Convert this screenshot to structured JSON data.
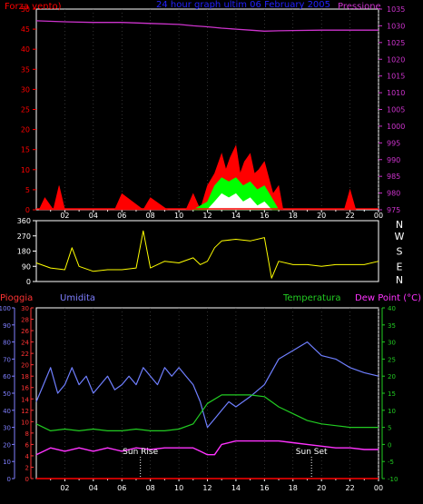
{
  "colors": {
    "background": "#000000",
    "frame": "#ffffff",
    "wind_max": "#ff0000",
    "wind_avg": "#00ff00",
    "wind_min": "#ffffff",
    "pressure": "#cc33cc",
    "direction": "#ffff00",
    "humidity": "#6f7fff",
    "temperature": "#22cc22",
    "dew_point": "#ff33ff",
    "rain": "#ff0000",
    "title": "#2222ff"
  },
  "top": {
    "left_label": "Forza vento)",
    "title": "24 hour graph ultim 06 February 2005",
    "right_label": "Pressione"
  },
  "direction_panel": {
    "compass": [
      "N",
      "W",
      "S",
      "E",
      "N"
    ]
  },
  "bottom": {
    "label_rain": "Pioggia",
    "label_humidity": "Umidita",
    "label_temperature": "Temperatura",
    "label_dewpoint": "Dew Point (°C)",
    "sunrise_label": "Sun Rise",
    "sunset_label": "Sun Set"
  },
  "chart_data": [
    {
      "type": "line",
      "name": "wind-and-pressure",
      "x_ticks": [
        "02",
        "04",
        "06",
        "08",
        "10",
        "12",
        "14",
        "16",
        "18",
        "20",
        "22",
        "00"
      ],
      "left_axis": {
        "label": "Forza vento)",
        "range": [
          0,
          50
        ],
        "ticks": [
          0,
          5,
          10,
          15,
          20,
          25,
          30,
          35,
          40,
          45,
          50
        ]
      },
      "right_axis": {
        "label": "Pressione",
        "range": [
          975,
          1035
        ],
        "ticks": [
          975,
          980,
          985,
          990,
          995,
          1000,
          1005,
          1010,
          1015,
          1020,
          1025,
          1030,
          1035
        ]
      },
      "pressure": {
        "x": [
          0,
          2,
          4,
          6,
          8,
          10,
          11,
          12,
          13,
          14,
          15,
          16,
          17,
          18,
          20,
          22,
          24
        ],
        "y": [
          1031.5,
          1031.2,
          1031,
          1031,
          1030.7,
          1030.4,
          1030,
          1029.7,
          1029.3,
          1029,
          1028.7,
          1028.4,
          1028.5,
          1028.6,
          1028.7,
          1028.7,
          1028.7
        ]
      },
      "wind_max": {
        "x": [
          0.2,
          0.6,
          1.2,
          1.6,
          2.0,
          3.0,
          5.5,
          6.0,
          7.5,
          8.0,
          9.2,
          10.5,
          11.0,
          11.5,
          12.0,
          12.5,
          12.8,
          13.0,
          13.3,
          13.6,
          14.0,
          14.3,
          14.6,
          15.0,
          15.3,
          15.6,
          16.0,
          16.3,
          16.6,
          17.0,
          17.3,
          21.6,
          22.0,
          22.4
        ],
        "y": [
          0,
          3,
          0,
          6,
          0,
          0,
          0,
          4,
          0,
          3,
          0,
          0,
          4,
          0,
          6,
          9,
          12,
          14,
          10,
          13,
          16,
          9,
          12,
          14,
          9,
          10,
          12,
          8,
          4,
          6,
          0,
          0,
          5,
          0
        ]
      },
      "wind_avg": {
        "x": [
          11.0,
          12.0,
          12.5,
          13.0,
          13.5,
          14.0,
          14.5,
          15.0,
          15.5,
          16.0,
          16.5,
          17.0
        ],
        "y": [
          0,
          2,
          6,
          8,
          7,
          8,
          6,
          7,
          5,
          6,
          3,
          0
        ]
      },
      "wind_min": {
        "x": [
          12.0,
          12.5,
          13.0,
          13.5,
          14.0,
          14.5,
          15.0,
          15.5,
          16.0,
          16.5
        ],
        "y": [
          0,
          2,
          4,
          3,
          4,
          2,
          3,
          1,
          2,
          0
        ]
      }
    },
    {
      "type": "line",
      "name": "wind-direction",
      "left_axis": {
        "range": [
          0,
          360
        ],
        "ticks": [
          0,
          90,
          180,
          270,
          360
        ]
      },
      "right_axis": {
        "labels": [
          "N",
          "W",
          "S",
          "E",
          "N"
        ]
      },
      "x": [
        0,
        1,
        2,
        2.5,
        3,
        4,
        5,
        6,
        7,
        7.5,
        8,
        9,
        10,
        11,
        11.5,
        12,
        12.5,
        13,
        14,
        15,
        16,
        16.5,
        17,
        18,
        19,
        20,
        21,
        22,
        23,
        24
      ],
      "y": [
        110,
        80,
        70,
        200,
        90,
        60,
        70,
        70,
        80,
        300,
        80,
        120,
        110,
        140,
        100,
        120,
        200,
        240,
        250,
        240,
        260,
        20,
        120,
        100,
        100,
        90,
        100,
        100,
        100,
        120
      ]
    },
    {
      "type": "line",
      "name": "humidity-temperature-dewpoint-rain",
      "x_ticks": [
        "02",
        "04",
        "06",
        "08",
        "10",
        "12",
        "14",
        "16",
        "18",
        "20",
        "22",
        "00"
      ],
      "humidity_axis": {
        "label": "Umidita",
        "range": [
          0,
          100
        ],
        "ticks": [
          0,
          10,
          20,
          30,
          40,
          50,
          60,
          70,
          80,
          90,
          100
        ]
      },
      "rain_axis": {
        "label": "Pioggia",
        "range": [
          0,
          30
        ],
        "ticks": [
          0,
          2,
          4,
          6,
          8,
          10,
          12,
          14,
          16,
          18,
          20,
          22,
          24,
          26,
          28,
          30
        ]
      },
      "temperature_axis": {
        "label": "Temperatura",
        "range": [
          -10,
          40
        ],
        "ticks": [
          -10,
          -5,
          0,
          5,
          10,
          15,
          20,
          25,
          30,
          35,
          40
        ]
      },
      "humidity": {
        "x": [
          0,
          0.5,
          1,
          1.5,
          2,
          2.5,
          3,
          3.5,
          4,
          4.5,
          5,
          5.5,
          6,
          6.5,
          7,
          7.5,
          8,
          8.5,
          9,
          9.5,
          10,
          10.5,
          11,
          11.5,
          12,
          12.5,
          13,
          13.5,
          14,
          15,
          16,
          17,
          18,
          19,
          20,
          21,
          22,
          23,
          24
        ],
        "y": [
          45,
          55,
          65,
          50,
          55,
          65,
          55,
          60,
          50,
          55,
          60,
          52,
          55,
          60,
          55,
          65,
          60,
          55,
          65,
          60,
          65,
          60,
          55,
          45,
          30,
          35,
          40,
          45,
          42,
          48,
          55,
          70,
          75,
          80,
          72,
          70,
          65,
          62,
          60
        ]
      },
      "temperature": {
        "x": [
          0,
          1,
          2,
          3,
          4,
          5,
          6,
          7,
          8,
          9,
          10,
          11,
          12,
          13,
          14,
          15,
          16,
          17,
          18,
          19,
          20,
          21,
          22,
          23,
          24
        ],
        "y": [
          6,
          4,
          4.5,
          4,
          4.5,
          4,
          4,
          4.5,
          4,
          4,
          4.5,
          6,
          12,
          14.5,
          14.5,
          14.5,
          14,
          11,
          9,
          7,
          6,
          5.5,
          5,
          5,
          5
        ]
      },
      "dew_point": {
        "x": [
          0,
          1,
          2,
          3,
          4,
          5,
          6,
          7,
          8,
          9,
          10,
          11,
          11.5,
          12,
          12.5,
          13,
          14,
          15,
          16,
          17,
          18,
          19,
          20,
          21,
          22,
          23,
          24
        ],
        "y": [
          -3,
          -1,
          -2,
          -1,
          -2,
          -1,
          -2,
          -1,
          -1.5,
          -1,
          -1,
          -1,
          -2,
          -3,
          -3,
          0,
          1,
          1,
          1,
          1,
          0.5,
          0,
          -0.5,
          -1,
          -1,
          -1.5,
          -1.5
        ]
      },
      "rain": {
        "x": [
          0,
          24
        ],
        "y": [
          0,
          0
        ]
      },
      "sunrise": 7.3,
      "sunset": 19.3
    }
  ]
}
